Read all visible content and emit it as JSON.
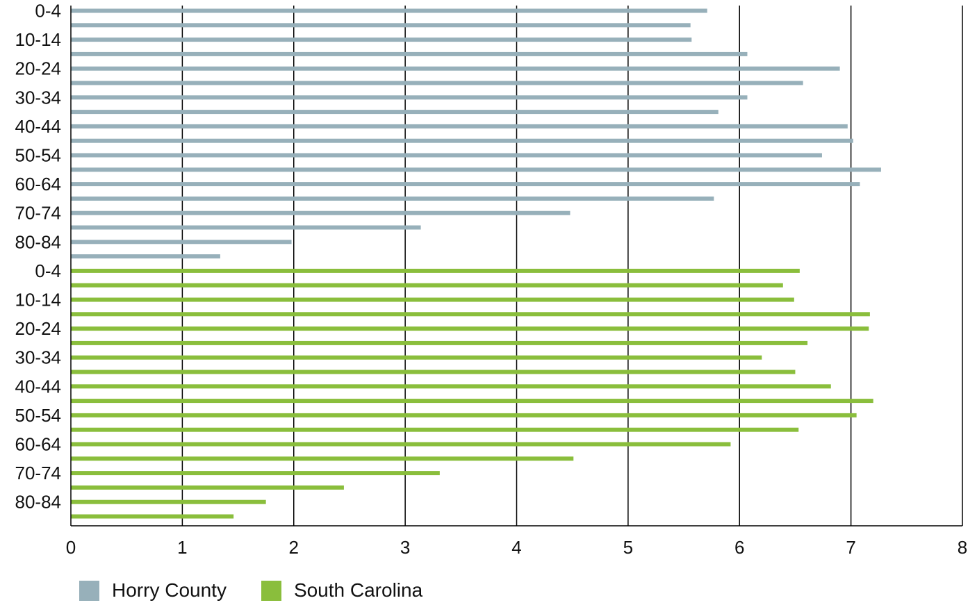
{
  "chart_data": {
    "type": "bar",
    "orientation": "horizontal",
    "title": "",
    "xlabel": "",
    "ylabel": "",
    "xlim": [
      0,
      8
    ],
    "x_ticks": [
      0,
      1,
      2,
      3,
      4,
      5,
      6,
      7,
      8
    ],
    "grid": "vertical",
    "legend_position": "bottom-left",
    "shown_row_labels": [
      "0-4",
      "10-14",
      "20-24",
      "30-34",
      "40-44",
      "50-54",
      "60-64",
      "70-74",
      "80-84"
    ],
    "series": [
      {
        "name": "Horry County",
        "color": "#97b0ba",
        "values": [
          5.71,
          5.56,
          5.57,
          6.07,
          6.9,
          6.57,
          6.07,
          5.81,
          6.97,
          7.02,
          6.74,
          7.27,
          7.08,
          5.77,
          4.48,
          3.14,
          1.98,
          1.34
        ]
      },
      {
        "name": "South Carolina",
        "color": "#8abe3c",
        "values": [
          6.54,
          6.39,
          6.49,
          7.17,
          7.16,
          6.61,
          6.2,
          6.5,
          6.82,
          7.2,
          7.05,
          6.53,
          5.92,
          4.51,
          3.31,
          2.45,
          1.75,
          1.46
        ]
      }
    ]
  }
}
